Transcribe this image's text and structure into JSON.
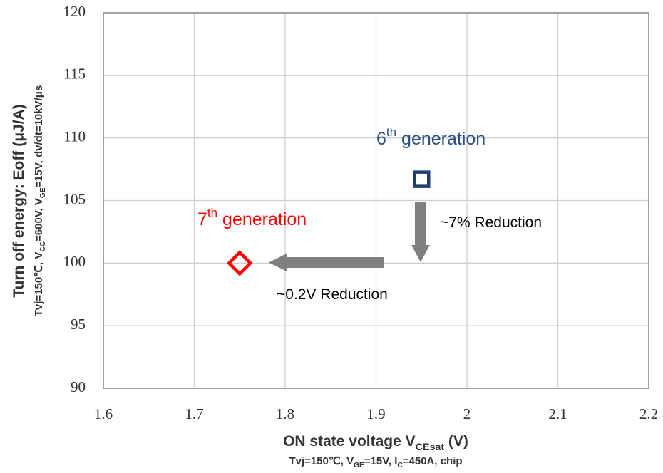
{
  "chart_data": {
    "type": "scatter",
    "x_label": [
      {
        "text": "ON state voltage V"
      },
      {
        "text": "CEsat",
        "sub": true
      },
      {
        "text": " (V)"
      }
    ],
    "x_subtitle": [
      {
        "text": "Tvj=150℃, V"
      },
      {
        "text": "GE",
        "sub": true
      },
      {
        "text": "=15V, I"
      },
      {
        "text": "C",
        "sub": true
      },
      {
        "text": "=450A, chip"
      }
    ],
    "y_label": [
      {
        "text": "Turn off energy: Eoff (μJ/A)"
      }
    ],
    "y_subtitle": [
      {
        "text": "Tvj=150℃, V"
      },
      {
        "text": "CC",
        "sub": true
      },
      {
        "text": "=600V,  V"
      },
      {
        "text": "GE",
        "sub": true
      },
      {
        "text": "=15V, dv/dt=10kV/μs"
      }
    ],
    "annotations": [
      {
        "runs": [
          {
            "text": "6"
          },
          {
            "text": "th",
            "sup": true
          },
          {
            "text": " generation"
          }
        ],
        "color": "#2f4f84"
      },
      {
        "runs": [
          {
            "text": "7"
          },
          {
            "text": "th",
            "sup": true
          },
          {
            "text": " generation"
          }
        ],
        "color": "#ff0000"
      },
      {
        "runs": [
          {
            "text": "~7% Reduction"
          }
        ],
        "color": "#000000"
      },
      {
        "runs": [
          {
            "text": "~0.2V Reduction"
          }
        ],
        "color": "#000000"
      }
    ],
    "series": [
      {
        "x": [
          1.95
        ],
        "values": [
          106.7
        ],
        "color": "#1f3f73",
        "marker": "square"
      },
      {
        "x": [
          1.75
        ],
        "values": [
          100
        ],
        "color": "#ff0000",
        "marker": "diamond"
      }
    ],
    "xlim": [
      1.6,
      2.2
    ],
    "xticks": [
      1.6,
      1.7,
      1.8,
      1.9,
      2,
      2.1,
      2.2
    ],
    "ylim": [
      90,
      120
    ],
    "yticks": [
      90,
      95,
      100,
      105,
      110,
      115,
      120
    ],
    "grid": true
  }
}
